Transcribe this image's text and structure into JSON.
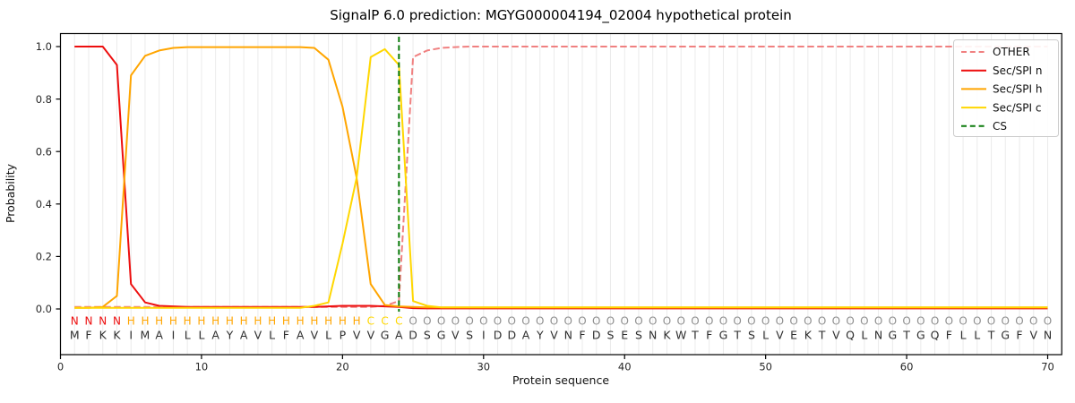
{
  "chart_data": {
    "type": "line",
    "title": "SignalP 6.0 prediction: MGYG000004194_02004 hypothetical protein",
    "xlabel": "Protein sequence",
    "ylabel": "Probability",
    "xticks": [
      0,
      10,
      20,
      30,
      40,
      50,
      60,
      70
    ],
    "yticks": [
      0.0,
      0.2,
      0.4,
      0.6,
      0.8,
      1.0
    ],
    "xlim": [
      0,
      71
    ],
    "ylim": [
      -0.17,
      1.05
    ],
    "grid": "light vertical gridline at every residue position",
    "legend_position": "upper right",
    "x_first_residue": 1,
    "sequence": "MFKKIMAILLAYAVLFAVLPVVGADSGVSIDDAYVNFDSESNKWTFGTSLVEKTVQLNGTGQFLLTGFVN",
    "region_labels": "NNNNHHHHHHHHHHHHHHHHHCCCOOOOOOOOOOOOOOOOOOOOOOOOOOOOOOOOOOOOOOOOOOOOOO",
    "region_colors": {
      "N": "#ed0e0e",
      "H": "#ffa500",
      "C": "#ffd700",
      "O": "#8f8f8f"
    },
    "colors": {
      "grid": "#ebebeb",
      "axis": "#000000",
      "sequence_text": "#2e2e2e",
      "legend_border": "#cccccc"
    },
    "series": [
      {
        "id": "other",
        "name": "OTHER",
        "color": "#f08080",
        "dash": true,
        "values": [
          0.008,
          0.008,
          0.008,
          0.008,
          0.008,
          0.008,
          0.008,
          0.008,
          0.008,
          0.008,
          0.008,
          0.008,
          0.008,
          0.008,
          0.008,
          0.008,
          0.008,
          0.008,
          0.008,
          0.008,
          0.008,
          0.008,
          0.012,
          0.03,
          0.96,
          0.985,
          0.995,
          0.998,
          1.0,
          1.0,
          1.0,
          1.0,
          1.0,
          1.0,
          1.0,
          1.0,
          1.0,
          1.0,
          1.0,
          1.0,
          1.0,
          1.0,
          1.0,
          1.0,
          1.0,
          1.0,
          1.0,
          1.0,
          1.0,
          1.0,
          1.0,
          1.0,
          1.0,
          1.0,
          1.0,
          1.0,
          1.0,
          1.0,
          1.0,
          1.0,
          1.0,
          1.0,
          1.0,
          1.0,
          1.0,
          1.0,
          1.0,
          1.0,
          1.0,
          1.0
        ]
      },
      {
        "id": "sec-spi-n",
        "name": "Sec/SPI n",
        "color": "#ed0e0e",
        "dash": false,
        "values": [
          1.0,
          1.0,
          1.0,
          0.93,
          0.095,
          0.025,
          0.012,
          0.01,
          0.008,
          0.008,
          0.008,
          0.008,
          0.008,
          0.008,
          0.008,
          0.008,
          0.008,
          0.008,
          0.01,
          0.012,
          0.012,
          0.012,
          0.01,
          0.008,
          0.003,
          0.002,
          0.002,
          0.002,
          0.002,
          0.002,
          0.002,
          0.002,
          0.002,
          0.002,
          0.002,
          0.002,
          0.002,
          0.002,
          0.002,
          0.002,
          0.002,
          0.002,
          0.002,
          0.002,
          0.002,
          0.002,
          0.002,
          0.002,
          0.002,
          0.002,
          0.002,
          0.002,
          0.002,
          0.002,
          0.002,
          0.002,
          0.002,
          0.002,
          0.002,
          0.002,
          0.002,
          0.002,
          0.002,
          0.002,
          0.002,
          0.002,
          0.002,
          0.002,
          0.002,
          0.002
        ]
      },
      {
        "id": "sec-spi-h",
        "name": "Sec/SPI h",
        "color": "#ffa500",
        "dash": false,
        "values": [
          0.004,
          0.004,
          0.008,
          0.05,
          0.89,
          0.965,
          0.985,
          0.995,
          0.998,
          0.998,
          0.998,
          0.998,
          0.998,
          0.998,
          0.998,
          0.998,
          0.998,
          0.995,
          0.95,
          0.77,
          0.5,
          0.095,
          0.015,
          0.01,
          0.008,
          0.006,
          0.006,
          0.006,
          0.006,
          0.006,
          0.006,
          0.006,
          0.006,
          0.006,
          0.006,
          0.006,
          0.006,
          0.006,
          0.006,
          0.006,
          0.006,
          0.006,
          0.006,
          0.006,
          0.006,
          0.006,
          0.006,
          0.006,
          0.006,
          0.006,
          0.006,
          0.006,
          0.006,
          0.006,
          0.006,
          0.006,
          0.006,
          0.006,
          0.006,
          0.006,
          0.006,
          0.006,
          0.006,
          0.006,
          0.006,
          0.006,
          0.006,
          0.006,
          0.006,
          0.006
        ]
      },
      {
        "id": "sec-spi-c",
        "name": "Sec/SPI c",
        "color": "#ffd700",
        "dash": false,
        "values": [
          0.004,
          0.004,
          0.004,
          0.004,
          0.004,
          0.004,
          0.004,
          0.004,
          0.004,
          0.004,
          0.004,
          0.004,
          0.004,
          0.004,
          0.004,
          0.004,
          0.004,
          0.012,
          0.025,
          0.25,
          0.5,
          0.96,
          0.99,
          0.93,
          0.03,
          0.012,
          0.006,
          0.006,
          0.006,
          0.006,
          0.006,
          0.006,
          0.006,
          0.006,
          0.006,
          0.006,
          0.006,
          0.006,
          0.006,
          0.006,
          0.006,
          0.006,
          0.006,
          0.006,
          0.006,
          0.006,
          0.006,
          0.006,
          0.006,
          0.006,
          0.006,
          0.006,
          0.006,
          0.006,
          0.006,
          0.006,
          0.006,
          0.006,
          0.006,
          0.006,
          0.006,
          0.006,
          0.006,
          0.006,
          0.006,
          0.006,
          0.006,
          0.006,
          0.006,
          0.006
        ]
      },
      {
        "id": "cs",
        "name": "CS",
        "color": "#0a7a0a",
        "type": "vline",
        "x": 24,
        "dash": true
      }
    ]
  }
}
